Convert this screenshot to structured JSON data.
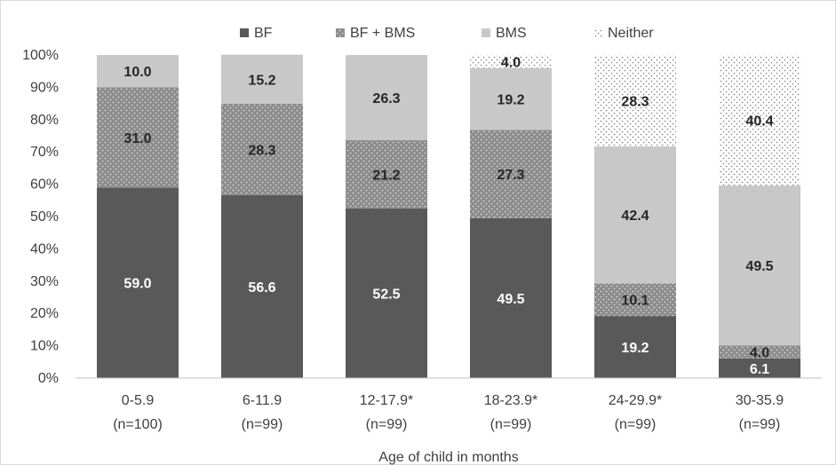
{
  "chart_data": {
    "type": "bar",
    "stacked": true,
    "percent_stacked": true,
    "xlabel": "Age of child in months",
    "ylabel": "",
    "ylim": [
      0,
      100
    ],
    "y_ticks": [
      "0%",
      "10%",
      "20%",
      "30%",
      "40%",
      "50%",
      "60%",
      "70%",
      "80%",
      "90%",
      "100%"
    ],
    "categories": [
      {
        "label": "0-5.9",
        "sub": "(n=100)"
      },
      {
        "label": "6-11.9",
        "sub": "(n=99)"
      },
      {
        "label": "12-17.9*",
        "sub": "(n=99)"
      },
      {
        "label": "18-23.9*",
        "sub": "(n=99)"
      },
      {
        "label": "24-29.9*",
        "sub": "(n=99)"
      },
      {
        "label": "30-35.9",
        "sub": "(n=99)"
      }
    ],
    "series": [
      {
        "name": "BF",
        "values": [
          59.0,
          56.6,
          52.5,
          49.5,
          19.2,
          6.1
        ],
        "labels": [
          "59.0",
          "56.6",
          "52.5",
          "49.5",
          "19.2",
          "6.1"
        ],
        "color": "#595959",
        "pattern": "solid",
        "label_color": "#ffffff"
      },
      {
        "name": "BF + BMS",
        "values": [
          31.0,
          28.3,
          21.2,
          27.3,
          10.1,
          4.0
        ],
        "labels": [
          "31.0",
          "28.3",
          "21.2",
          "27.3",
          "10.1",
          "4.0"
        ],
        "color": "#8c8c8c",
        "pattern": "dots-light",
        "label_color": "#262626"
      },
      {
        "name": "BMS",
        "values": [
          10.0,
          15.2,
          26.3,
          19.2,
          42.4,
          49.5
        ],
        "labels": [
          "10.0",
          "15.2",
          "26.3",
          "19.2",
          "42.4",
          "49.5"
        ],
        "color": "#c8c8c8",
        "pattern": "solid",
        "label_color": "#262626"
      },
      {
        "name": "Neither",
        "values": [
          0,
          0,
          0,
          4.0,
          28.3,
          40.4
        ],
        "labels": [
          "",
          "",
          "",
          "4.0",
          "28.3",
          "40.4"
        ],
        "color": "#ffffff",
        "pattern": "dots-dark",
        "label_color": "#262626"
      }
    ],
    "legend_position": "top",
    "grid": false
  }
}
